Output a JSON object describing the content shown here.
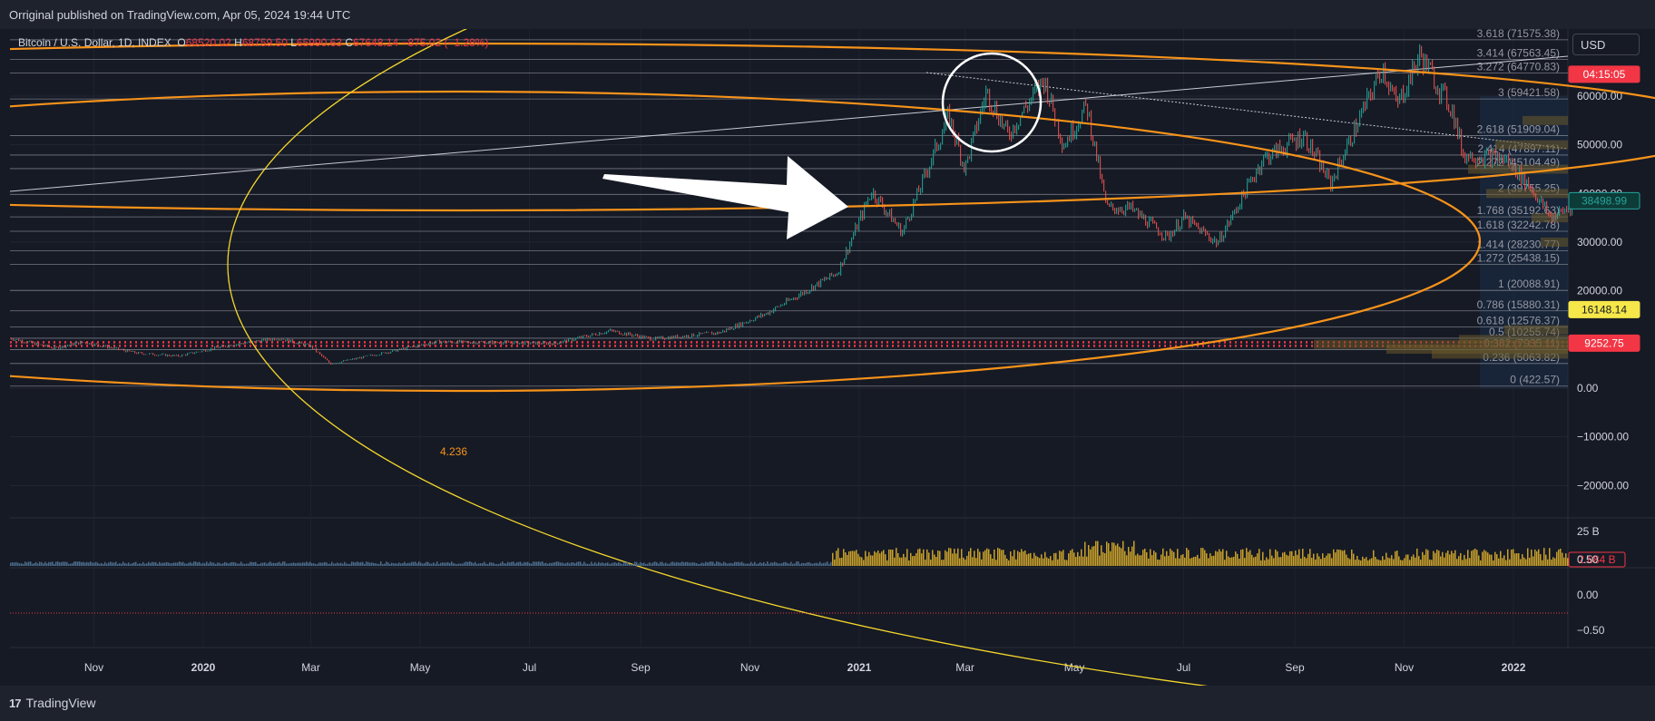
{
  "header": {
    "published_text": "Orriginal published on TradingView.com, Apr 05, 2024 19:44 UTC"
  },
  "legend": {
    "symbol": "Bitcoin / U.S. Dollar, 1D, INDEX",
    "open_label": "O",
    "open": "68520.02",
    "high_label": "H",
    "high": "68759.50",
    "low_label": "L",
    "low": "65990.63",
    "close_label": "C",
    "close": "67648.14",
    "change": "−875.02 (−1.28%)"
  },
  "currency_button": "USD",
  "footer": {
    "brand": "TradingView",
    "logo_mark": "17"
  },
  "colors": {
    "background": "#161a25",
    "up": "#26a69a",
    "down": "#ef5350",
    "ellipse_orange": "#f7931a",
    "fib_yellow": "#f5d72b",
    "last_price_red": "#f23645"
  },
  "chart_data": {
    "type": "candlestick",
    "symbol": "Bitcoin / U.S. Dollar, 1D, INDEX",
    "price_axis": {
      "ticks": [
        60000,
        50000,
        40000,
        30000,
        20000,
        0,
        -10000,
        -20000
      ],
      "labels": [
        "60000.00",
        "50000.00",
        "40000.00",
        "30000.00",
        "20000.00",
        "0.00",
        "−10000.00",
        "−20000.00"
      ],
      "range": [
        -27500,
        71500
      ]
    },
    "time_axis": {
      "labels": [
        "Nov",
        "2020",
        "Mar",
        "May",
        "Jul",
        "Sep",
        "Nov",
        "2021",
        "Mar",
        "May",
        "Jul",
        "Sep",
        "Nov",
        "2022"
      ],
      "bold": [
        "2020",
        "2021",
        "2022"
      ]
    },
    "price_path": [
      [
        "2019-09-15",
        10300
      ],
      [
        "2019-10-10",
        8200
      ],
      [
        "2019-10-26",
        9500
      ],
      [
        "2019-11-25",
        7200
      ],
      [
        "2019-12-18",
        6600
      ],
      [
        "2020-01-15",
        8800
      ],
      [
        "2020-02-12",
        10300
      ],
      [
        "2020-03-01",
        8600
      ],
      [
        "2020-03-12",
        5000
      ],
      [
        "2020-04-05",
        6800
      ],
      [
        "2020-05-10",
        9500
      ],
      [
        "2020-06-15",
        9400
      ],
      [
        "2020-07-15",
        9200
      ],
      [
        "2020-08-15",
        11800
      ],
      [
        "2020-09-08",
        10100
      ],
      [
        "2020-10-15",
        11400
      ],
      [
        "2020-11-10",
        15300
      ],
      [
        "2020-11-30",
        19500
      ],
      [
        "2020-12-20",
        23800
      ],
      [
        "2021-01-08",
        40500
      ],
      [
        "2021-01-25",
        32000
      ],
      [
        "2021-02-20",
        56000
      ],
      [
        "2021-03-01",
        45000
      ],
      [
        "2021-03-13",
        61000
      ],
      [
        "2021-03-25",
        52000
      ],
      [
        "2021-04-14",
        63500
      ],
      [
        "2021-04-25",
        50000
      ],
      [
        "2021-05-08",
        58000
      ],
      [
        "2021-05-19",
        37000
      ],
      [
        "2021-06-01",
        37000
      ],
      [
        "2021-06-22",
        31000
      ],
      [
        "2021-07-01",
        35000
      ],
      [
        "2021-07-20",
        29800
      ],
      [
        "2021-08-14",
        47000
      ],
      [
        "2021-09-06",
        52000
      ],
      [
        "2021-09-21",
        42000
      ],
      [
        "2021-10-20",
        66000
      ],
      [
        "2021-10-28",
        58000
      ],
      [
        "2021-11-10",
        68500
      ],
      [
        "2021-11-28",
        57000
      ],
      [
        "2021-12-04",
        48000
      ],
      [
        "2021-12-28",
        47000
      ],
      [
        "2022-01-10",
        41500
      ],
      [
        "2022-01-22",
        35000
      ],
      [
        "2022-02-08",
        38498
      ]
    ],
    "fib_levels": [
      {
        "ratio": "3.618",
        "price": 71575.38
      },
      {
        "ratio": "3.414",
        "price": 67563.45
      },
      {
        "ratio": "3.272",
        "price": 64770.83
      },
      {
        "ratio": "3",
        "price": 59421.58
      },
      {
        "ratio": "2.618",
        "price": 51909.04
      },
      {
        "ratio": "2.414",
        "price": 47897.11
      },
      {
        "ratio": "2.272",
        "price": 45104.49
      },
      {
        "ratio": "2",
        "price": 39755.25
      },
      {
        "ratio": "1.768",
        "price": 35192.63
      },
      {
        "ratio": "1.618",
        "price": 32242.78
      },
      {
        "ratio": "1.414",
        "price": 28230.77
      },
      {
        "ratio": "1.272",
        "price": 25438.15
      },
      {
        "ratio": "1",
        "price": 20088.91
      },
      {
        "ratio": "0.786",
        "price": 15880.31
      },
      {
        "ratio": "0.618",
        "price": 12576.37
      },
      {
        "ratio": "0.5",
        "price": 10255.74
      },
      {
        "ratio": "0.382",
        "price": 7935.11
      },
      {
        "ratio": "0.236",
        "price": 5063.82
      },
      {
        "ratio": "0",
        "price": 422.57
      }
    ],
    "ellipse_label": "4.236",
    "price_badges": [
      {
        "text": "04:15:05",
        "price": 64500,
        "bg": "#f23645",
        "fg": "#ffffff"
      },
      {
        "text": "38498.99",
        "price": 38498.99,
        "bg": "#0c3b38",
        "fg": "#26a69a",
        "border": "#26a69a"
      },
      {
        "text": "16148.14",
        "price": 16148.14,
        "bg": "#f5e74a",
        "fg": "#131722"
      },
      {
        "text": "9252.75",
        "price": 9252.75,
        "bg": "#f23645",
        "fg": "#ffffff"
      }
    ],
    "volume": {
      "axis_label": "25 B",
      "last_value": "2.884 B"
    },
    "oscillator": {
      "ticks": [
        "0.50",
        "0.00",
        "−0.50"
      ]
    }
  }
}
